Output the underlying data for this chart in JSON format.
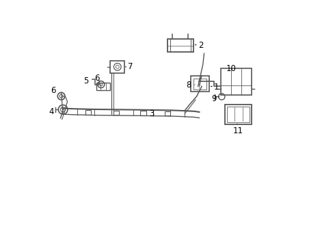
{
  "bg_color": "#ffffff",
  "line_color": "#555555",
  "text_color": "#000000",
  "label_fontsize": 8.5
}
